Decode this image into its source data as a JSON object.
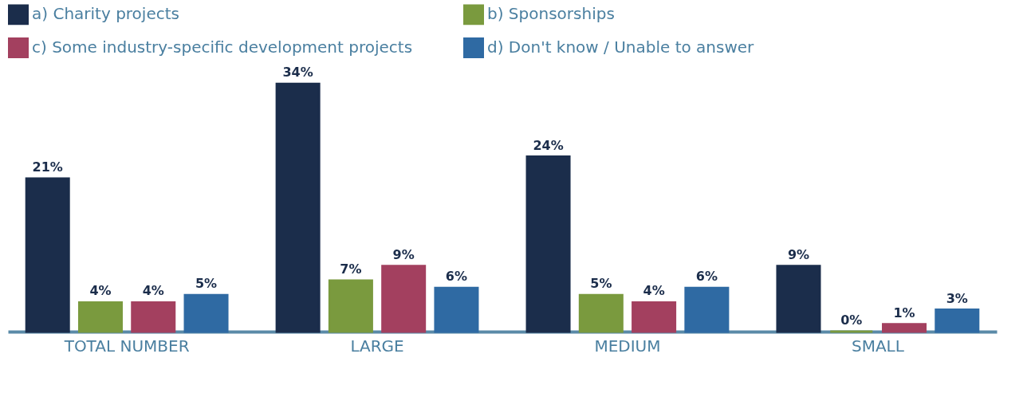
{
  "chart_data": {
    "type": "bar",
    "categories": [
      "TOTAL NUMBER",
      "LARGE",
      "MEDIUM",
      "SMALL"
    ],
    "legend": "top",
    "grid": false,
    "series": [
      {
        "name": "a) Charity projects",
        "color": "#1b2d4b",
        "values": [
          21,
          34,
          24,
          9
        ],
        "value_labels": [
          "21%",
          "34%",
          "24%",
          "9%"
        ]
      },
      {
        "name": "b) Sponsorships",
        "color": "#7a9a3e",
        "values": [
          4,
          7,
          5,
          0
        ],
        "value_labels": [
          "4%",
          "7%",
          "5%",
          "0%"
        ]
      },
      {
        "name": "c) Some industry-specific development projects",
        "color": "#a3405f",
        "values": [
          4,
          9,
          4,
          1
        ],
        "value_labels": [
          "4%",
          "9%",
          "4%",
          "1%"
        ]
      },
      {
        "name": "d) Don't know / Unable to answer",
        "color": "#2f6aa3",
        "values": [
          5,
          6,
          6,
          3
        ],
        "value_labels": [
          "5%",
          "6%",
          "6%",
          "3%"
        ]
      }
    ]
  }
}
